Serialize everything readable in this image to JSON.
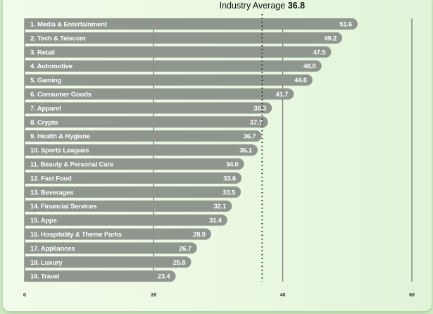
{
  "chart_data": {
    "type": "bar",
    "orientation": "horizontal",
    "categories": [
      "1. Media & Entertainment",
      "2. Tech & Telecom",
      "3. Retail",
      "4. Automotive",
      "5. Gaming",
      "6. Consumer Goods",
      "7. Apparel",
      "8. Crypto",
      "9. Health & Hygiene",
      "10. Sports Leagues",
      "11. Beauty & Personal Care",
      "12. Fast Food",
      "13. Beverages",
      "14. Financial Services",
      "15. Apps",
      "16. Hospitality & Theme Parks",
      "17. Appliances",
      "18. Luxury",
      "19. Travel"
    ],
    "values": [
      51.6,
      49.2,
      47.5,
      46.0,
      44.6,
      41.7,
      38.3,
      37.7,
      36.7,
      36.1,
      34.0,
      33.6,
      33.5,
      32.1,
      31.4,
      28.9,
      26.7,
      25.8,
      23.4
    ],
    "value_labels": [
      "51.6",
      "49.2",
      "47.5",
      "46.0",
      "44.6",
      "41.7",
      "38.3",
      "37.7",
      "36.7",
      "36.1",
      "34.0",
      "33.6",
      "33.5",
      "32.1",
      "31.4",
      "28.9",
      "26.7",
      "25.8",
      "23.4"
    ],
    "xlim": [
      0,
      60
    ],
    "xticks": [
      0,
      20,
      40,
      60
    ],
    "xtick_labels": [
      "0",
      "20",
      "40",
      "60"
    ],
    "grid": true,
    "reference_line": {
      "label": "Industry Average",
      "value": 36.8,
      "value_label": "36.8",
      "style": "dotted"
    },
    "colors": {
      "bar": "#8f968d",
      "label_text": "#ffffff",
      "background": "#eef9e6"
    }
  }
}
